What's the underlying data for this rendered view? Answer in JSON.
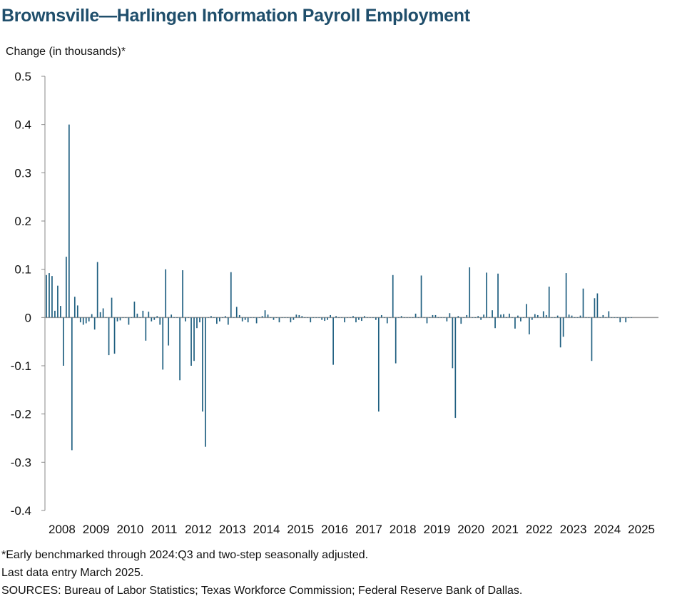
{
  "chart_data": {
    "type": "bar",
    "title": "Brownsville—Harlingen Information Payroll Employment",
    "ylabel": "Change (in thousands)*",
    "xlabel": "",
    "ylim": [
      -0.4,
      0.5
    ],
    "yticks": [
      0.5,
      0.4,
      0.3,
      0.2,
      0.1,
      0,
      -0.1,
      -0.2,
      -0.3,
      -0.4
    ],
    "ytick_labels": [
      "0.5",
      "0.4",
      "0.3",
      "0.2",
      "0.1",
      "0",
      "-0.1",
      "-0.2",
      "-0.3",
      "-0.4"
    ],
    "xtick_labels": [
      "2008",
      "2009",
      "2010",
      "2011",
      "2012",
      "2013",
      "2014",
      "2015",
      "2016",
      "2017",
      "2018",
      "2019",
      "2020",
      "2021",
      "2022",
      "2023",
      "2024",
      "2025"
    ],
    "x_start": "2008-01",
    "frequency": "monthly",
    "series": [
      {
        "color": "#1f5f80",
        "values": [
          0.088,
          0.092,
          0.086,
          0.014,
          0.066,
          0.024,
          -0.1,
          0.126,
          0.4,
          -0.275,
          0.043,
          0.025,
          -0.01,
          -0.015,
          -0.012,
          -0.008,
          0.007,
          -0.025,
          0.115,
          0.011,
          0.019,
          0.0,
          -0.078,
          0.041,
          -0.075,
          -0.008,
          -0.006,
          0.0,
          0.0,
          -0.015,
          0.0,
          0.033,
          0.008,
          0.0,
          0.014,
          -0.048,
          0.012,
          -0.008,
          -0.005,
          0.003,
          -0.015,
          -0.108,
          0.1,
          -0.058,
          0.006,
          0.0,
          0.0,
          -0.13,
          0.098,
          -0.008,
          0.0,
          -0.1,
          -0.09,
          -0.022,
          -0.01,
          -0.195,
          -0.268,
          0.0,
          0.003,
          0.0,
          -0.013,
          -0.008,
          0.0,
          0.003,
          -0.015,
          0.094,
          0.0,
          0.022,
          0.005,
          -0.008,
          -0.005,
          -0.01,
          0.0,
          0.0,
          -0.012,
          0.0,
          0.003,
          0.015,
          0.006,
          0.0,
          -0.005,
          0.0,
          -0.01,
          0.0,
          0.0,
          0.0,
          -0.01,
          -0.005,
          0.006,
          0.005,
          0.003,
          0.0,
          0.0,
          -0.01,
          0.0,
          0.0,
          0.0,
          -0.005,
          -0.007,
          -0.005,
          0.005,
          -0.098,
          0.003,
          0.0,
          0.0,
          -0.01,
          0.0,
          0.0,
          0.003,
          -0.01,
          -0.005,
          -0.007,
          0.003,
          0.0,
          0.0,
          0.0,
          -0.005,
          -0.195,
          0.005,
          0.0,
          -0.012,
          0.0,
          0.088,
          -0.095,
          0.0,
          0.003,
          0.0,
          0.0,
          0.0,
          0.0,
          0.008,
          0.0,
          0.087,
          0.0,
          -0.012,
          0.0,
          0.005,
          0.005,
          0.0,
          0.0,
          0.0,
          -0.008,
          0.009,
          -0.105,
          -0.208,
          0.003,
          -0.013,
          0.0,
          0.005,
          0.104,
          0.0,
          0.0,
          0.003,
          -0.005,
          0.006,
          0.093,
          0.0,
          0.015,
          -0.022,
          0.091,
          0.006,
          0.007,
          0.0,
          0.008,
          0.0,
          -0.023,
          0.004,
          -0.008,
          0.0,
          0.028,
          -0.035,
          -0.005,
          0.007,
          0.005,
          0.0,
          0.013,
          0.005,
          0.064,
          0.0,
          0.0,
          0.004,
          -0.062,
          -0.04,
          0.092,
          0.006,
          0.004,
          0.0,
          0.0,
          0.004,
          0.06,
          0.0,
          0.0,
          -0.09,
          0.04,
          0.05,
          0.0,
          0.005,
          0.0,
          0.013,
          0.0,
          0.0,
          0.0,
          -0.01,
          0.0,
          -0.01,
          0.0,
          0.0
        ]
      }
    ],
    "grid": false,
    "legend": "none"
  },
  "footnotes": [
    "*Early benchmarked through 2024:Q3 and two-step seasonally adjusted.",
    "Last data entry March 2025.",
    "SOURCES: Bureau of Labor Statistics; Texas Workforce Commission; Federal Reserve Bank of Dallas."
  ]
}
